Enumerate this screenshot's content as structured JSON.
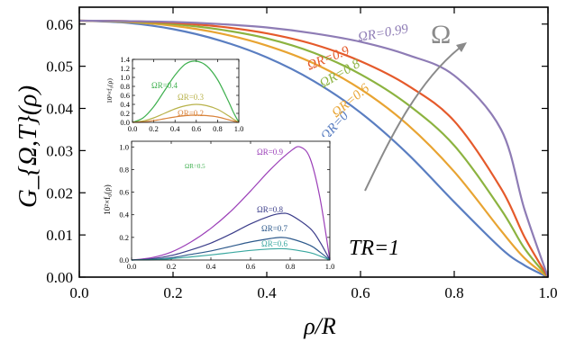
{
  "chart_data": [
    {
      "type": "line",
      "xlabel": "ρ/R",
      "ylabel": "G_{Ω,T}(ρ)",
      "xlim": [
        0,
        1
      ],
      "ylim": [
        0,
        0.064
      ],
      "x_ticks": [
        "0.0",
        "0.2",
        "0.4",
        "0.6",
        "0.8",
        "1.0"
      ],
      "y_ticks": [
        "0.00",
        "0.01",
        "0.02",
        "0.03",
        "0.04",
        "0.05",
        "0.06"
      ],
      "x_tick_values": [
        0,
        0.2,
        0.4,
        0.6,
        0.8,
        1.0
      ],
      "y_tick_values": [
        0,
        0.01,
        0.02,
        0.03,
        0.04,
        0.05,
        0.06
      ],
      "annotations": [
        "TR=1",
        "Ω"
      ],
      "series": [
        {
          "name": "ΩR=0",
          "color": "#5a7ec1",
          "x": [
            0,
            0.1,
            0.2,
            0.3,
            0.4,
            0.5,
            0.6,
            0.7,
            0.8,
            0.9,
            0.95,
            1.0
          ],
          "values": [
            0.0608,
            0.0603,
            0.0588,
            0.0561,
            0.0521,
            0.0465,
            0.039,
            0.0293,
            0.0178,
            0.0068,
            0.0028,
            0.0
          ]
        },
        {
          "name": "ΩR=0.6",
          "color": "#e8a432",
          "x": [
            0,
            0.1,
            0.2,
            0.3,
            0.4,
            0.5,
            0.6,
            0.7,
            0.8,
            0.9,
            0.95,
            1.0
          ],
          "values": [
            0.0608,
            0.0605,
            0.0596,
            0.0578,
            0.0549,
            0.0507,
            0.0446,
            0.0362,
            0.025,
            0.011,
            0.0045,
            0.0
          ]
        },
        {
          "name": "ΩR=0.8",
          "color": "#8cb340",
          "x": [
            0,
            0.1,
            0.2,
            0.3,
            0.4,
            0.5,
            0.6,
            0.7,
            0.8,
            0.9,
            0.95,
            1.0
          ],
          "values": [
            0.0608,
            0.0606,
            0.06,
            0.0587,
            0.0566,
            0.0532,
            0.0481,
            0.041,
            0.0312,
            0.016,
            0.0068,
            0.0
          ]
        },
        {
          "name": "ΩR=0.9",
          "color": "#e55a2b",
          "x": [
            0,
            0.1,
            0.2,
            0.3,
            0.4,
            0.5,
            0.6,
            0.7,
            0.8,
            0.9,
            0.95,
            1.0
          ],
          "values": [
            0.0608,
            0.0607,
            0.0603,
            0.0594,
            0.0578,
            0.0552,
            0.0512,
            0.0455,
            0.037,
            0.021,
            0.0095,
            0.0
          ]
        },
        {
          "name": "ΩR=0.99",
          "color": "#8e7cb5",
          "x": [
            0,
            0.1,
            0.2,
            0.3,
            0.4,
            0.5,
            0.6,
            0.7,
            0.8,
            0.9,
            0.95,
            1.0
          ],
          "values": [
            0.0608,
            0.0607,
            0.0605,
            0.06,
            0.0592,
            0.0578,
            0.0558,
            0.0527,
            0.0478,
            0.035,
            0.016,
            0.0
          ]
        }
      ]
    },
    {
      "type": "line",
      "ylabel": "10³×f₀(ρ)",
      "xlim": [
        0,
        1
      ],
      "ylim": [
        0,
        1.4
      ],
      "x_ticks": [
        "0.0",
        "0.2",
        "0.4",
        "0.6",
        "0.8",
        "1.0"
      ],
      "y_ticks": [
        "0.0",
        "0.2",
        "0.4",
        "0.6",
        "0.8",
        "1.0",
        "1.2",
        "1.4"
      ],
      "x_tick_values": [
        0,
        0.2,
        0.4,
        0.6,
        0.8,
        1.0
      ],
      "y_tick_values": [
        0,
        0.2,
        0.4,
        0.6,
        0.8,
        1.0,
        1.2,
        1.4
      ],
      "series": [
        {
          "name": "ΩR=0.4",
          "color": "#3fb04f",
          "x": [
            0,
            0.1,
            0.2,
            0.3,
            0.4,
            0.5,
            0.6,
            0.7,
            0.8,
            0.9,
            0.95,
            1.0
          ],
          "values": [
            0,
            0.1,
            0.35,
            0.7,
            1.05,
            1.3,
            1.36,
            1.25,
            0.95,
            0.48,
            0.22,
            0
          ]
        },
        {
          "name": "ΩR=0.3",
          "color": "#b8b24a",
          "x": [
            0,
            0.1,
            0.2,
            0.3,
            0.4,
            0.5,
            0.6,
            0.7,
            0.8,
            0.9,
            0.95,
            1.0
          ],
          "values": [
            0,
            0.03,
            0.1,
            0.2,
            0.3,
            0.37,
            0.4,
            0.37,
            0.29,
            0.15,
            0.07,
            0
          ]
        },
        {
          "name": "ΩR=0.2",
          "color": "#d9833a",
          "x": [
            0,
            0.1,
            0.2,
            0.3,
            0.4,
            0.5,
            0.6,
            0.7,
            0.8,
            0.9,
            0.95,
            1.0
          ],
          "values": [
            0,
            0.01,
            0.04,
            0.08,
            0.12,
            0.15,
            0.16,
            0.15,
            0.12,
            0.06,
            0.03,
            0
          ]
        }
      ]
    },
    {
      "type": "line",
      "ylabel": "10²×f₀(ρ)",
      "xlim": [
        0,
        1
      ],
      "ylim": [
        0,
        1.05
      ],
      "x_ticks": [
        "0.0",
        "0.2",
        "0.4",
        "0.6",
        "0.8",
        "1.0"
      ],
      "y_ticks": [
        "0.0",
        "0.2",
        "0.4",
        "0.6",
        "0.8",
        "1.0"
      ],
      "x_tick_values": [
        0,
        0.2,
        0.4,
        0.6,
        0.8,
        1.0
      ],
      "y_tick_values": [
        0,
        0.2,
        0.4,
        0.6,
        0.8,
        1.0
      ],
      "annotations": [
        "ΩR=0.5"
      ],
      "series": [
        {
          "name": "ΩR=0.9",
          "color": "#9b3fb8",
          "x": [
            0,
            0.1,
            0.2,
            0.3,
            0.4,
            0.5,
            0.6,
            0.7,
            0.8,
            0.85,
            0.9,
            0.95,
            1.0
          ],
          "values": [
            0,
            0.02,
            0.07,
            0.16,
            0.28,
            0.43,
            0.61,
            0.8,
            0.96,
            1.0,
            0.9,
            0.55,
            0
          ]
        },
        {
          "name": "ΩR=0.8",
          "color": "#3b3d8a",
          "x": [
            0,
            0.1,
            0.2,
            0.3,
            0.4,
            0.5,
            0.6,
            0.7,
            0.75,
            0.8,
            0.9,
            0.95,
            1.0
          ],
          "values": [
            0,
            0.01,
            0.04,
            0.09,
            0.15,
            0.23,
            0.32,
            0.39,
            0.41,
            0.4,
            0.28,
            0.16,
            0
          ]
        },
        {
          "name": "ΩR=0.7",
          "color": "#2e5a8c",
          "x": [
            0,
            0.1,
            0.2,
            0.3,
            0.4,
            0.5,
            0.6,
            0.7,
            0.75,
            0.8,
            0.9,
            0.95,
            1.0
          ],
          "values": [
            0,
            0.005,
            0.02,
            0.05,
            0.08,
            0.12,
            0.16,
            0.19,
            0.2,
            0.19,
            0.13,
            0.07,
            0
          ]
        },
        {
          "name": "ΩR=0.6",
          "color": "#3aa8a0",
          "x": [
            0,
            0.1,
            0.2,
            0.3,
            0.4,
            0.5,
            0.6,
            0.7,
            0.75,
            0.8,
            0.9,
            0.95,
            1.0
          ],
          "values": [
            0,
            0.003,
            0.012,
            0.028,
            0.045,
            0.065,
            0.085,
            0.098,
            0.1,
            0.095,
            0.065,
            0.035,
            0
          ]
        }
      ]
    }
  ]
}
